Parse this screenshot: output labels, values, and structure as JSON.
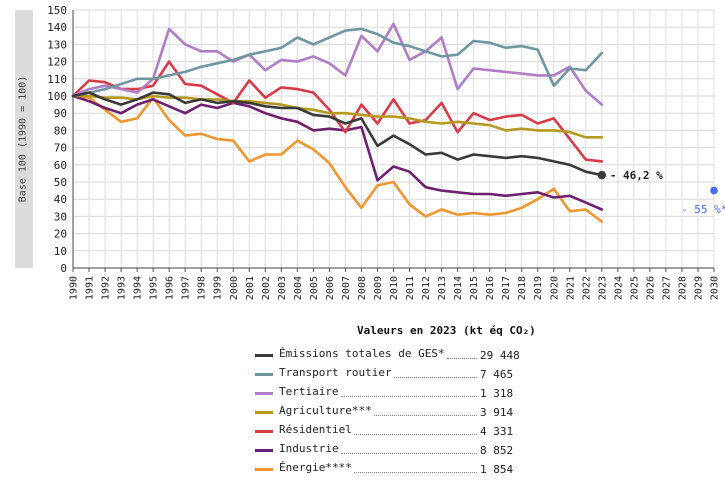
{
  "chart_data": {
    "type": "line",
    "ylabel": "Base 100 (1990 = 100)",
    "ylim": [
      0,
      150
    ],
    "y_ticks": [
      "0",
      "10",
      "20",
      "30",
      "40",
      "50",
      "60",
      "70",
      "80",
      "90",
      "100",
      "110",
      "120",
      "130",
      "140",
      "150"
    ],
    "x": [
      1990,
      1991,
      1992,
      1993,
      1994,
      1995,
      1996,
      1997,
      1998,
      1999,
      2000,
      2001,
      2002,
      2003,
      2004,
      2005,
      2006,
      2007,
      2008,
      2009,
      2010,
      2011,
      2012,
      2013,
      2014,
      2015,
      2016,
      2017,
      2018,
      2019,
      2020,
      2021,
      2022,
      2023
    ],
    "x_ticks": [
      "1990",
      "1991",
      "1992",
      "1993",
      "1994",
      "1995",
      "1996",
      "1997",
      "1998",
      "1999",
      "2000",
      "2001",
      "2002",
      "2003",
      "2004",
      "2005",
      "2006",
      "2007",
      "2008",
      "2009",
      "2010",
      "2011",
      "2012",
      "2013",
      "2014",
      "2015",
      "2016",
      "2017",
      "2018",
      "2019",
      "2020",
      "2021",
      "2022",
      "2023",
      "2024",
      "2025",
      "2026",
      "2027",
      "2028",
      "2029",
      "2030"
    ],
    "xlim": [
      1990,
      2030
    ],
    "grid": true,
    "legend_title": "Valeurs en 2023 (kt éq CO₂)",
    "series": [
      {
        "name": "Émissions totales de GES*",
        "legend_value": "29 448",
        "color": "#3a3a3a",
        "values": [
          100,
          102,
          98,
          95,
          98,
          102,
          101,
          96,
          98,
          96,
          97,
          96,
          94,
          93,
          93,
          89,
          88,
          84,
          87,
          71,
          77,
          72,
          66,
          67,
          63,
          66,
          65,
          64,
          65,
          64,
          62,
          60,
          56,
          54
        ]
      },
      {
        "name": "Transport routier",
        "legend_value": "7 465",
        "color": "#6f96a1",
        "values": [
          100,
          102,
          104,
          107,
          110,
          110,
          112,
          114,
          117,
          119,
          121,
          124,
          126,
          128,
          134,
          130,
          134,
          138,
          139,
          136,
          131,
          129,
          126,
          123,
          124,
          132,
          131,
          128,
          129,
          127,
          106,
          116,
          115,
          125
        ]
      },
      {
        "name": "Tertiaire",
        "legend_value": "1 318",
        "color": "#b07cc6",
        "values": [
          100,
          104,
          106,
          104,
          102,
          110,
          139,
          130,
          126,
          126,
          120,
          124,
          115,
          121,
          120,
          123,
          119,
          112,
          135,
          126,
          142,
          121,
          126,
          134,
          104,
          116,
          115,
          114,
          113,
          112,
          112,
          117,
          103,
          95
        ]
      },
      {
        "name": "Agriculture***",
        "legend_value": "3 914",
        "color": "#b59a1f",
        "values": [
          100,
          100,
          99,
          99,
          98,
          100,
          99,
          99,
          98,
          98,
          97,
          97,
          96,
          95,
          93,
          92,
          90,
          90,
          89,
          88,
          88,
          87,
          85,
          84,
          85,
          84,
          83,
          80,
          81,
          80,
          80,
          79,
          76,
          76
        ]
      },
      {
        "name": "Résidentiel",
        "legend_value": "4 331",
        "color": "#d63b47",
        "values": [
          100,
          109,
          108,
          104,
          104,
          106,
          120,
          107,
          106,
          101,
          96,
          109,
          99,
          105,
          104,
          102,
          92,
          79,
          95,
          84,
          98,
          84,
          86,
          96,
          79,
          90,
          86,
          88,
          89,
          84,
          87,
          75,
          63,
          62
        ]
      },
      {
        "name": "Industrie",
        "legend_value": "8 852",
        "color": "#6f1f70",
        "values": [
          100,
          97,
          93,
          90,
          95,
          98,
          94,
          90,
          95,
          93,
          96,
          94,
          90,
          87,
          85,
          80,
          81,
          80,
          82,
          51,
          59,
          56,
          47,
          45,
          44,
          43,
          43,
          42,
          43,
          44,
          41,
          42,
          38,
          34
        ]
      },
      {
        "name": "Énergie****",
        "legend_value": "1 854",
        "color": "#f0962f",
        "values": [
          100,
          99,
          92,
          85,
          87,
          99,
          86,
          77,
          78,
          75,
          74,
          62,
          66,
          66,
          74,
          69,
          61,
          47,
          35,
          48,
          50,
          37,
          30,
          34,
          31,
          32,
          31,
          32,
          35,
          40,
          46,
          33,
          34,
          27
        ]
      }
    ],
    "annotations": [
      {
        "text": "- 46,2 %",
        "x": 2023,
        "y": 54
      },
      {
        "text": "- 55 %*",
        "x": 2030,
        "y": 45
      }
    ]
  }
}
